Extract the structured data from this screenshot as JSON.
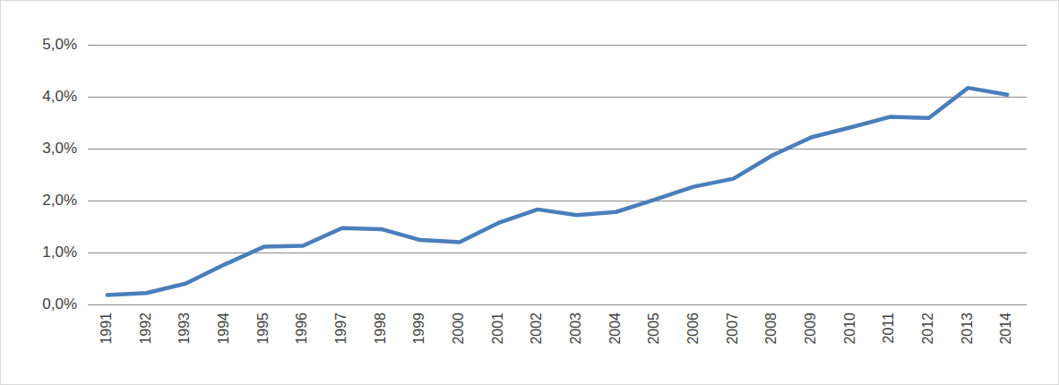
{
  "chart_data": {
    "type": "line",
    "categories": [
      "1991",
      "1992",
      "1993",
      "1994",
      "1995",
      "1996",
      "1997",
      "1998",
      "1999",
      "2000",
      "2001",
      "2002",
      "2003",
      "2004",
      "2005",
      "2006",
      "2007",
      "2008",
      "2009",
      "2010",
      "2011",
      "2012",
      "2013",
      "2014"
    ],
    "values": [
      0.18,
      0.22,
      0.4,
      0.77,
      1.11,
      1.13,
      1.47,
      1.45,
      1.24,
      1.2,
      1.57,
      1.83,
      1.72,
      1.78,
      2.02,
      2.27,
      2.42,
      2.87,
      3.22,
      3.41,
      3.61,
      3.59,
      4.17,
      4.04
    ],
    "color": "#4a7ebb",
    "ylim": [
      0,
      5
    ],
    "yticks": [
      {
        "value": 0,
        "label": "0,0%"
      },
      {
        "value": 1,
        "label": "1,0%"
      },
      {
        "value": 2,
        "label": "2,0%"
      },
      {
        "value": 3,
        "label": "3,0%"
      },
      {
        "value": 4,
        "label": "4,0%"
      },
      {
        "value": 5,
        "label": "5,0%"
      }
    ],
    "grid": true
  }
}
